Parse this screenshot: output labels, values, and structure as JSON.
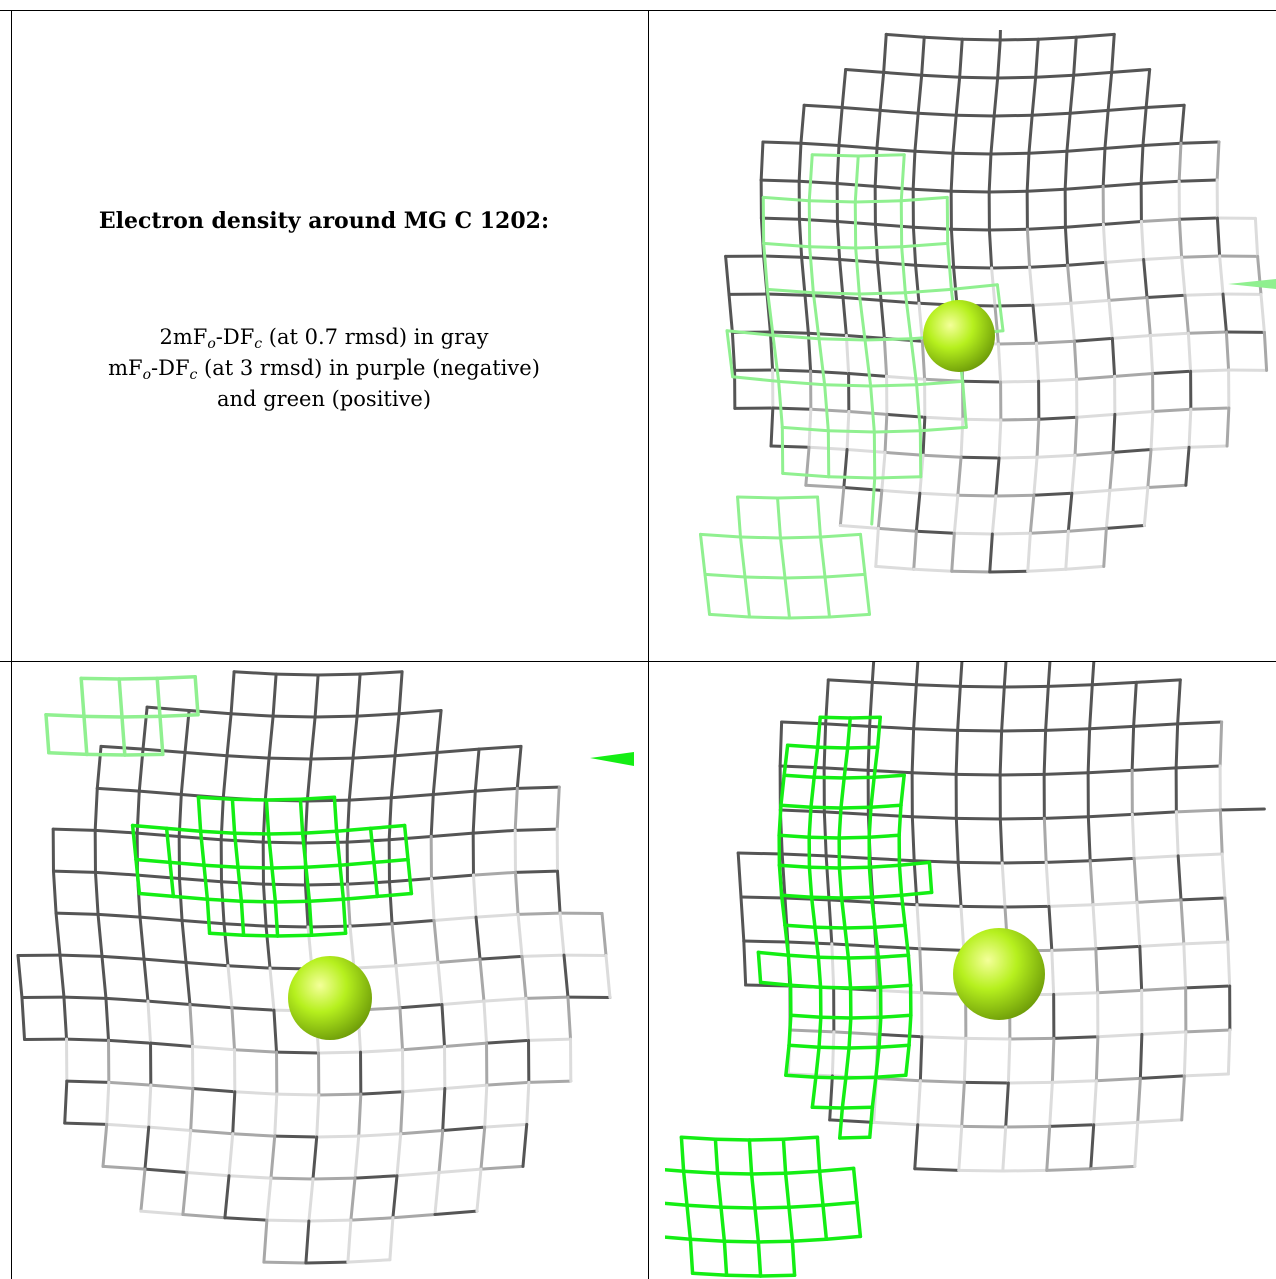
{
  "figure": {
    "title": "Electron density around MG C 1202:",
    "legend": {
      "line1": {
        "a": "2mF",
        "a_sub": "o",
        "b": "-DF",
        "b_sub": "c",
        "c": " (at 0.7 rmsd) in gray"
      },
      "line2": {
        "a": "mF",
        "a_sub": "o",
        "b": "-DF",
        "b_sub": "c",
        "c": " (at 3 rmsd) in purple (negative)"
      },
      "line3": "and green (positive)"
    }
  },
  "colors": {
    "gray_mesh": "#a8a8a8",
    "dark_mesh": "#555555",
    "light_mesh": "#dcdcdc",
    "green_mesh": "#14ee14",
    "light_green_mesh": "#90f090",
    "atom": "#9ae61e",
    "border": "#000000"
  },
  "panels": [
    {
      "id": "top-right",
      "atom_label": "MG C 1202"
    },
    {
      "id": "bottom-left",
      "atom_label": "MG C 1202"
    },
    {
      "id": "bottom-right",
      "atom_label": "MG C 1202"
    }
  ]
}
